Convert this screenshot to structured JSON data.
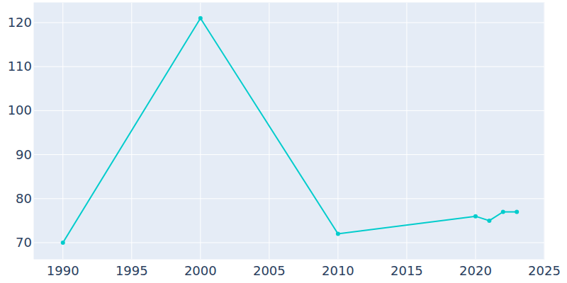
{
  "chart_data": {
    "type": "line",
    "x": [
      1990,
      2000,
      2010,
      2020,
      2021,
      2022,
      2023
    ],
    "values": [
      70,
      121,
      72,
      76,
      75,
      77,
      77
    ],
    "color": "#00cccc",
    "marker": "circle",
    "xlim": [
      1987.9,
      2025
    ],
    "xticks": [
      1990,
      1995,
      2000,
      2005,
      2010,
      2015,
      2020,
      2025
    ],
    "ylim": [
      66.3,
      124.5
    ],
    "yticks": [
      70,
      80,
      90,
      100,
      110,
      120
    ],
    "grid": true
  }
}
